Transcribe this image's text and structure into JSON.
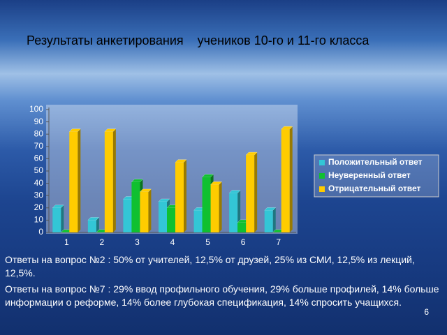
{
  "chart_data": {
    "type": "bar3d",
    "title": "Результаты анкетирования    учеников 10-го и 11-го класса",
    "categories": [
      "1",
      "2",
      "3",
      "4",
      "5",
      "6",
      "7"
    ],
    "series": [
      {
        "name": "Положительный ответ",
        "color": "#33c6d6",
        "values": [
          20,
          10,
          27,
          25,
          18,
          32,
          18
        ]
      },
      {
        "name": "Неуверенный ответ",
        "color": "#10c030",
        "values": [
          0,
          0,
          41,
          20,
          45,
          8,
          0
        ]
      },
      {
        "name": "Отрицательный ответ",
        "color": "#ffcc00",
        "values": [
          82,
          82,
          33,
          57,
          39,
          63,
          84
        ]
      }
    ],
    "ylim": [
      0,
      100
    ],
    "yticks": [
      0,
      10,
      20,
      30,
      40,
      50,
      60,
      70,
      80,
      90,
      100
    ],
    "grid": false,
    "legend": "right"
  },
  "notes": [
    "Ответы на вопрос №2 : 50% от учителей, 12,5% от друзей, 25% из СМИ, 12,5% из лекций, 12,5%.",
    "Ответы на вопрос №7 : 29% ввод профильного обучения, 29% больше профилей, 14% больше информации о реформе, 14% более глубокая спецификация, 14% спросить учащихся."
  ],
  "page_number": "6"
}
